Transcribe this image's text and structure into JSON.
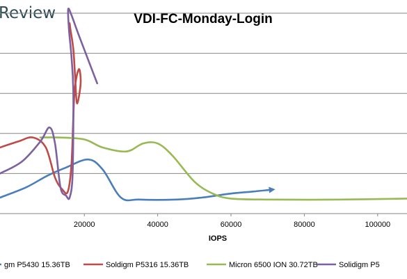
{
  "watermark": "Review",
  "colors": {
    "kioxia_blue": "#4a7ebb",
    "p5316_red": "#be4b48",
    "micron_green": "#98b954",
    "p5430_purple": "#7d60a0",
    "gridline": "#868686"
  },
  "chart_data": {
    "type": "line",
    "title": "VDI-FC-Monday-Login",
    "xlabel": "IOPS",
    "ylabel": "",
    "xlim": [
      -3000,
      108000
    ],
    "ylim": [
      0,
      1.0
    ],
    "x_ticks": [
      20000,
      40000,
      60000,
      80000,
      100000
    ],
    "x_tick_labels": [
      "20000",
      "40000",
      "60000",
      "80000",
      "100000"
    ],
    "grid_y": [
      0.2,
      0.4,
      0.6,
      0.8,
      1.0
    ],
    "legend_position": "bottom",
    "series": [
      {
        "name": "gm P5430 15.36TB",
        "color_key": "kioxia_blue",
        "points": [
          [
            -3000,
            0.08
          ],
          [
            4000,
            0.13
          ],
          [
            10000,
            0.19
          ],
          [
            15000,
            0.23
          ],
          [
            21000,
            0.27
          ],
          [
            25000,
            0.22
          ],
          [
            30000,
            0.08
          ],
          [
            35000,
            0.07
          ],
          [
            45000,
            0.07
          ],
          [
            52000,
            0.08
          ],
          [
            60000,
            0.1
          ],
          [
            66000,
            0.11
          ],
          [
            71500,
            0.12
          ]
        ],
        "end_marker": "arrow"
      },
      {
        "name": "Soldigm P5316 15.36TB",
        "color_key": "p5316_red",
        "points": [
          [
            -3000,
            0.33
          ],
          [
            2000,
            0.36
          ],
          [
            6000,
            0.38
          ],
          [
            9500,
            0.33
          ],
          [
            12000,
            0.18
          ],
          [
            14000,
            0.12
          ],
          [
            15500,
            0.11
          ],
          [
            16500,
            0.25
          ],
          [
            17300,
            0.6
          ],
          [
            18500,
            0.72
          ],
          [
            19000,
            0.65
          ],
          [
            18000,
            0.55
          ],
          [
            17500,
            0.68
          ],
          [
            17000,
            0.82
          ],
          [
            16200,
            0.92
          ],
          [
            16000,
            0.95
          ]
        ]
      },
      {
        "name": "Micron 6500 ION 30.72TB",
        "color_key": "micron_green",
        "points": [
          [
            8000,
            0.38
          ],
          [
            13000,
            0.38
          ],
          [
            20000,
            0.37
          ],
          [
            25000,
            0.33
          ],
          [
            31500,
            0.31
          ],
          [
            36000,
            0.35
          ],
          [
            40000,
            0.35
          ],
          [
            44000,
            0.29
          ],
          [
            50000,
            0.16
          ],
          [
            55000,
            0.1
          ],
          [
            60000,
            0.075
          ],
          [
            70000,
            0.07
          ],
          [
            90000,
            0.07
          ],
          [
            108000,
            0.075
          ]
        ]
      },
      {
        "name": "Solidigm P5",
        "color_key": "p5430_purple",
        "points": [
          [
            -3000,
            0.2
          ],
          [
            3000,
            0.26
          ],
          [
            8000,
            0.36
          ],
          [
            10500,
            0.43
          ],
          [
            12000,
            0.35
          ],
          [
            13500,
            0.13
          ],
          [
            15000,
            0.09
          ],
          [
            16000,
            0.08
          ],
          [
            16800,
            0.2
          ],
          [
            17000,
            0.6
          ],
          [
            16500,
            0.78
          ],
          [
            15800,
            0.92
          ],
          [
            15600,
            1.02
          ],
          [
            16500,
            0.99
          ],
          [
            18500,
            0.89
          ],
          [
            23500,
            0.65
          ]
        ]
      }
    ]
  }
}
